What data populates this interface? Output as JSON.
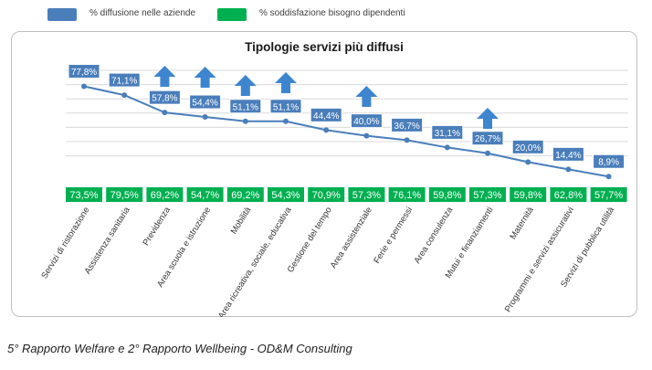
{
  "legend": {
    "series1_label": "% diffusione nelle aziende",
    "series2_label": "% soddisfazione bisogno dipendenti"
  },
  "colors": {
    "series1": "#4a7ebb",
    "series1_line": "#4a7ebb",
    "series2": "#00b050",
    "arrow": "#3d86cf",
    "grid": "#d9d9d9"
  },
  "caption": "5° Rapporto Welfare e 2° Rapporto Wellbeing - OD&M Consulting",
  "chart_data": {
    "type": "line",
    "title": "Tipologie servizi più diffusi",
    "categories": [
      "Servizi di ristorazione",
      "Assistenza sanitaria",
      "Previdenza",
      "Area scuola e istruzione",
      "Mobilità",
      "Area ricreativa, sociale, educativa",
      "Gestione del tempo",
      "Area assistenziale",
      "Ferie e permessi",
      "Area consulenza",
      "Mutui e finanziamenti",
      "Maternità",
      "Programmi e servizi assicurativi",
      "Servizi di pubblica utilità"
    ],
    "series": [
      {
        "name": "% diffusione nelle aziende",
        "values": [
          77.8,
          71.1,
          57.8,
          54.4,
          51.1,
          51.1,
          44.4,
          40.0,
          36.7,
          31.1,
          26.7,
          20.0,
          14.4,
          8.9
        ],
        "labels": [
          "77,8%",
          "71,1%",
          "57,8%",
          "54,4%",
          "51,1%",
          "51,1%",
          "44,4%",
          "40,0%",
          "36,7%",
          "31,1%",
          "26,7%",
          "20,0%",
          "14,4%",
          "8,9%"
        ]
      },
      {
        "name": "% soddisfazione bisogno dipendenti",
        "values": [
          73.5,
          79.5,
          69.2,
          54.7,
          69.2,
          54.3,
          70.9,
          57.3,
          76.1,
          59.8,
          57.3,
          59.8,
          62.8,
          57.7
        ],
        "labels": [
          "73,5%",
          "79,5%",
          "69,2%",
          "54,7%",
          "69,2%",
          "54,3%",
          "70,9%",
          "57,3%",
          "76,1%",
          "59,8%",
          "57,3%",
          "59,8%",
          "62,8%",
          "57,7%"
        ]
      }
    ],
    "highlighted_categories": [
      2,
      3,
      4,
      5,
      7,
      10
    ],
    "highlight_marker": "up-arrow-icon",
    "ylim": [
      0,
      90
    ],
    "grid": true,
    "legend_position": "top-left"
  }
}
